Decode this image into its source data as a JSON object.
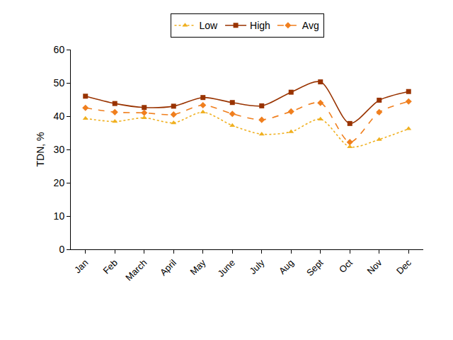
{
  "chart_data": {
    "type": "line",
    "y_label": "TDN, %",
    "categories": [
      "Jan",
      "Feb",
      "March",
      "April",
      "May",
      "June",
      "July",
      "Aug",
      "Sept",
      "Oct",
      "Nov",
      "Dec"
    ],
    "series": [
      {
        "name": "Low",
        "color": "#f0b020",
        "marker": "triangle-up",
        "line_style": "dot",
        "values": [
          39.3,
          38.4,
          39.5,
          38.0,
          41.2,
          37.2,
          34.6,
          35.3,
          39.1,
          30.8,
          33.0,
          36.2
        ]
      },
      {
        "name": "High",
        "color": "#993300",
        "marker": "square",
        "line_style": "solid",
        "values": [
          46.0,
          43.8,
          42.6,
          43.0,
          45.6,
          44.1,
          43.1,
          47.2,
          50.3,
          37.8,
          44.8,
          47.4
        ]
      },
      {
        "name": "Avg",
        "color": "#f07f1e",
        "marker": "diamond",
        "line_style": "dash",
        "values": [
          42.5,
          41.2,
          41.0,
          40.5,
          43.3,
          40.7,
          38.9,
          41.4,
          44.0,
          32.2,
          41.2,
          44.4
        ]
      }
    ],
    "ylim": [
      0,
      60
    ],
    "yticks": [
      0,
      10,
      20,
      30,
      40,
      50,
      60
    ],
    "grid": false,
    "legend": "top"
  }
}
